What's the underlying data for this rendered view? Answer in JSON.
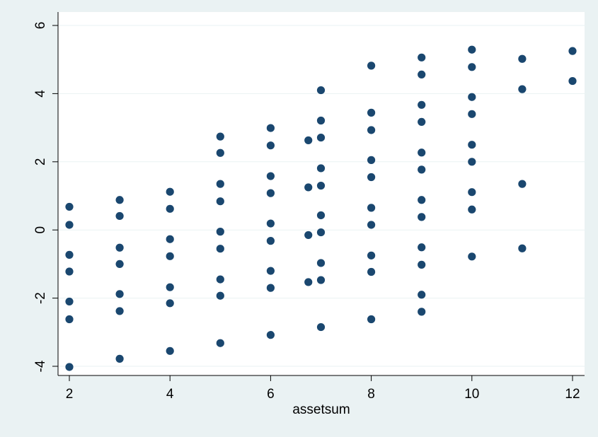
{
  "chart_data": {
    "type": "scatter",
    "title": "",
    "xlabel": "assetsum",
    "ylabel": "",
    "xlim": [
      2,
      12
    ],
    "ylim": [
      -4,
      6
    ],
    "xticks": [
      2,
      4,
      6,
      8,
      10,
      12
    ],
    "yticks": [
      -4,
      -2,
      0,
      2,
      4,
      6
    ],
    "xtick_labels": [
      "2",
      "4",
      "6",
      "8",
      "10",
      "12"
    ],
    "ytick_labels": [
      "-4",
      "-2",
      "0",
      "2",
      "4",
      "6"
    ],
    "grid": "horizontal",
    "legend": "none",
    "colors": {
      "background": "#eaf2f3",
      "plot_background": "#ffffff",
      "marker": "#1a476f",
      "grid": "#eaf2f3"
    },
    "points": [
      {
        "x": 2,
        "y": 0.68
      },
      {
        "x": 2,
        "y": 0.15
      },
      {
        "x": 2,
        "y": -0.73
      },
      {
        "x": 2,
        "y": -1.22
      },
      {
        "x": 2,
        "y": -2.1
      },
      {
        "x": 2,
        "y": -2.62
      },
      {
        "x": 2,
        "y": -4.02
      },
      {
        "x": 3,
        "y": 0.88
      },
      {
        "x": 3,
        "y": 0.41
      },
      {
        "x": 3,
        "y": -0.52
      },
      {
        "x": 3,
        "y": -1.0
      },
      {
        "x": 3,
        "y": -1.88
      },
      {
        "x": 3,
        "y": -2.38
      },
      {
        "x": 3,
        "y": -3.78
      },
      {
        "x": 4,
        "y": 1.12
      },
      {
        "x": 4,
        "y": 0.62
      },
      {
        "x": 4,
        "y": -0.27
      },
      {
        "x": 4,
        "y": -0.77
      },
      {
        "x": 4,
        "y": -1.68
      },
      {
        "x": 4,
        "y": -2.15
      },
      {
        "x": 4,
        "y": -3.55
      },
      {
        "x": 5,
        "y": 2.74
      },
      {
        "x": 5,
        "y": 2.26
      },
      {
        "x": 5,
        "y": 1.35
      },
      {
        "x": 5,
        "y": 0.84
      },
      {
        "x": 5,
        "y": -0.05
      },
      {
        "x": 5,
        "y": -0.55
      },
      {
        "x": 5,
        "y": -1.45
      },
      {
        "x": 5,
        "y": -1.93
      },
      {
        "x": 5,
        "y": -3.32
      },
      {
        "x": 6,
        "y": 2.99
      },
      {
        "x": 6,
        "y": 2.48
      },
      {
        "x": 6,
        "y": 1.58
      },
      {
        "x": 6,
        "y": 1.08
      },
      {
        "x": 6,
        "y": 0.19
      },
      {
        "x": 6,
        "y": -0.32
      },
      {
        "x": 6,
        "y": -1.2
      },
      {
        "x": 6,
        "y": -1.7
      },
      {
        "x": 6,
        "y": -3.08
      },
      {
        "x": 6.75,
        "y": 2.63
      },
      {
        "x": 6.75,
        "y": 1.25
      },
      {
        "x": 6.75,
        "y": -0.15
      },
      {
        "x": 6.75,
        "y": -1.53
      },
      {
        "x": 7,
        "y": 4.1
      },
      {
        "x": 7,
        "y": 3.21
      },
      {
        "x": 7,
        "y": 2.71
      },
      {
        "x": 7,
        "y": 1.81
      },
      {
        "x": 7,
        "y": 1.3
      },
      {
        "x": 7,
        "y": 0.43
      },
      {
        "x": 7,
        "y": -0.07
      },
      {
        "x": 7,
        "y": -0.97
      },
      {
        "x": 7,
        "y": -1.47
      },
      {
        "x": 7,
        "y": -2.85
      },
      {
        "x": 8,
        "y": 4.82
      },
      {
        "x": 8,
        "y": 3.44
      },
      {
        "x": 8,
        "y": 2.93
      },
      {
        "x": 8,
        "y": 2.05
      },
      {
        "x": 8,
        "y": 1.55
      },
      {
        "x": 8,
        "y": 0.65
      },
      {
        "x": 8,
        "y": 0.15
      },
      {
        "x": 8,
        "y": -0.75
      },
      {
        "x": 8,
        "y": -1.23
      },
      {
        "x": 8,
        "y": -2.62
      },
      {
        "x": 9,
        "y": 5.06
      },
      {
        "x": 9,
        "y": 4.56
      },
      {
        "x": 9,
        "y": 3.67
      },
      {
        "x": 9,
        "y": 3.17
      },
      {
        "x": 9,
        "y": 2.27
      },
      {
        "x": 9,
        "y": 1.77
      },
      {
        "x": 9,
        "y": 0.88
      },
      {
        "x": 9,
        "y": 0.38
      },
      {
        "x": 9,
        "y": -0.51
      },
      {
        "x": 9,
        "y": -1.02
      },
      {
        "x": 9,
        "y": -1.9
      },
      {
        "x": 9,
        "y": -2.4
      },
      {
        "x": 10,
        "y": 5.29
      },
      {
        "x": 10,
        "y": 4.78
      },
      {
        "x": 10,
        "y": 3.9
      },
      {
        "x": 10,
        "y": 3.4
      },
      {
        "x": 10,
        "y": 2.5
      },
      {
        "x": 10,
        "y": 2.0
      },
      {
        "x": 10,
        "y": 1.11
      },
      {
        "x": 10,
        "y": 0.6
      },
      {
        "x": 10,
        "y": -0.78
      },
      {
        "x": 11,
        "y": 5.02
      },
      {
        "x": 11,
        "y": 4.13
      },
      {
        "x": 11,
        "y": 1.35
      },
      {
        "x": 11,
        "y": -0.54
      },
      {
        "x": 12,
        "y": 5.25
      },
      {
        "x": 12,
        "y": 4.37
      }
    ]
  }
}
